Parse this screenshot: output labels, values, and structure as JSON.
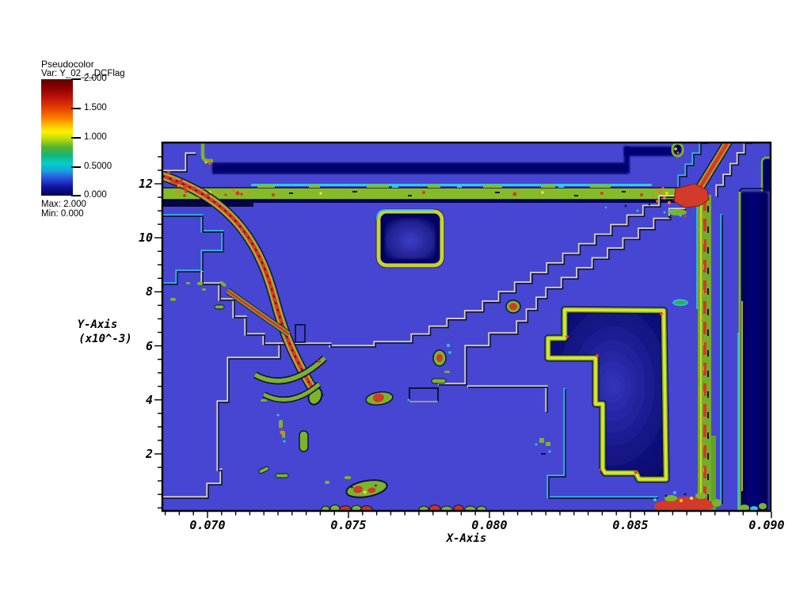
{
  "legend": {
    "title": "Pseudocolor",
    "var_label": "Var: Y_02_-_DCFlag",
    "tick_labels": [
      "2.000",
      "1.500",
      "1.000",
      "0.5000",
      "0.000"
    ],
    "max_label": "Max: 2.000",
    "min_label": "Min: 0.000"
  },
  "axes": {
    "x": {
      "label": "X-Axis",
      "tick_labels": [
        "0.070",
        "0.075",
        "0.080",
        "0.085",
        "0.090"
      ]
    },
    "y": {
      "label": "Y-Axis",
      "label_exp": "(x10^-3)",
      "tick_labels": [
        "2",
        "4",
        "6",
        "8",
        "10",
        "12"
      ]
    }
  },
  "chart_data": {
    "type": "heatmap",
    "title": "Pseudocolor plot",
    "variable": "Y_02_-_DCFlag",
    "value_min": 0.0,
    "value_max": 2.0,
    "colorbar_tick_values": [
      2.0,
      1.5,
      1.0,
      0.5,
      0.0
    ],
    "colormap_stops": [
      "#5e0000",
      "#c01409",
      "#fa7a00",
      "#fff200",
      "#57b52a",
      "#04cfc4",
      "#2b5ce0",
      "#000050"
    ],
    "xlabel": "X-Axis",
    "ylabel": "Y-Axis (x10^-3)",
    "x_axis": {
      "range": [
        0.0684,
        0.09
      ],
      "major_ticks": [
        0.07,
        0.075,
        0.08,
        0.085,
        0.09
      ],
      "minor_step": 0.0005
    },
    "y_axis": {
      "range": [
        -0.11,
        13.52
      ],
      "major_ticks": [
        2,
        4,
        6,
        8,
        10,
        12
      ],
      "minor_step": 0.5
    },
    "background_field_color": "#4646d2",
    "features": [
      "uniform blue background field (value ~0.25)",
      "dark navy horizontal strip along top with green end caps",
      "full-width yellow-green horizontal band below it with red/yellow/cyan specks and a cyan line above",
      "red detonation arc with green fringe curving from upper-left down to lower-center",
      "secondary red streak and two green crescent arcs below the arc tip",
      "small rounded square with yellow-green border and navy interior, upper-center",
      "double staircase mesh-refinement boundary running diagonally from upper-right junction to center-left",
      "vertical green/red shock band on the right with red diagonal entering from top-right corner and red junction blob",
      "wide dark navy vertical band near right edge with green/yellow left edge",
      "large yellow-outlined navy region (notched rectangle) in lower-right",
      "scattered green blobs with red cores across lower half and along bottom edge",
      "red debris cluster at bottom-right near shock foot"
    ]
  }
}
